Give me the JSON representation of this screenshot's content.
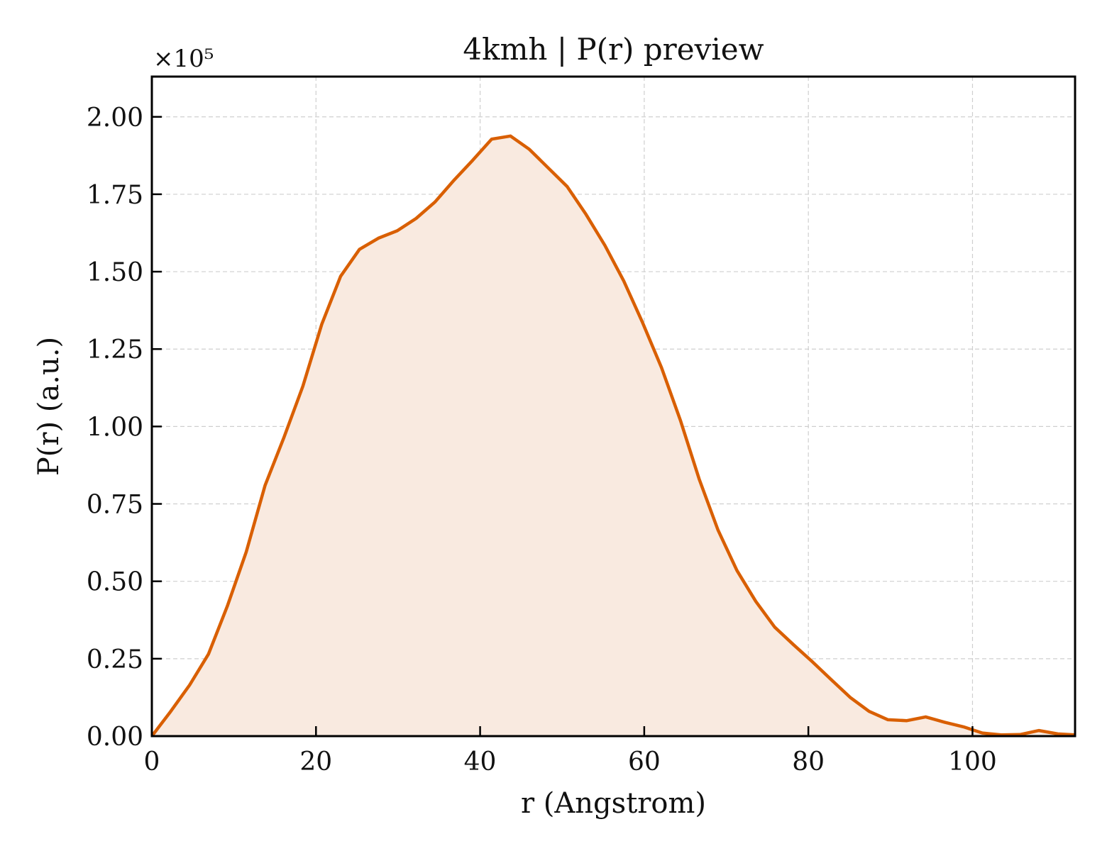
{
  "chart_data": {
    "type": "area",
    "title": "4kmh | P(r) preview",
    "xlabel": "r (Angstrom)",
    "ylabel": "P(r) (a.u.)",
    "y_scale_label": "×10⁵",
    "y_scale_factor": 100000,
    "xlim": [
      0,
      112.5
    ],
    "ylim": [
      0,
      2.13
    ],
    "x_ticks": [
      0,
      20,
      40,
      60,
      80,
      100
    ],
    "x_tick_labels": [
      "0",
      "20",
      "40",
      "60",
      "80",
      "100"
    ],
    "y_ticks": [
      0,
      0.25,
      0.5,
      0.75,
      1.0,
      1.25,
      1.5,
      1.75,
      2.0
    ],
    "y_tick_labels": [
      "0.00",
      "0.25",
      "0.50",
      "0.75",
      "1.00",
      "1.25",
      "1.50",
      "1.75",
      "2.00"
    ],
    "grid": true,
    "series": [
      {
        "color": "#d95f02",
        "fill_color": "#f9eae0",
        "x": [
          0,
          2.3,
          4.6,
          6.9,
          9.2,
          11.5,
          13.8,
          16.1,
          18.4,
          20.7,
          23.0,
          25.3,
          27.6,
          29.9,
          32.2,
          34.5,
          36.8,
          39.1,
          41.4,
          43.7,
          46.0,
          48.3,
          50.6,
          52.9,
          55.2,
          57.5,
          59.8,
          62.1,
          64.4,
          66.7,
          69.0,
          71.3,
          73.6,
          75.9,
          78.2,
          80.5,
          82.8,
          85.1,
          87.4,
          89.7,
          92.0,
          94.3,
          96.6,
          98.9,
          101.2,
          103.5,
          105.8,
          108.1,
          110.4,
          112.5
        ],
        "y": [
          0.0,
          0.08,
          0.165,
          0.265,
          0.42,
          0.595,
          0.81,
          0.965,
          1.13,
          1.33,
          1.485,
          1.572,
          1.608,
          1.632,
          1.672,
          1.725,
          1.795,
          1.86,
          1.928,
          1.938,
          1.895,
          1.835,
          1.775,
          1.685,
          1.585,
          1.47,
          1.335,
          1.19,
          1.02,
          0.83,
          0.665,
          0.535,
          0.435,
          0.352,
          0.295,
          0.24,
          0.182,
          0.125,
          0.08,
          0.053,
          0.05,
          0.062,
          0.045,
          0.03,
          0.01,
          0.004,
          0.005,
          0.018,
          0.007,
          0.004
        ]
      }
    ]
  }
}
